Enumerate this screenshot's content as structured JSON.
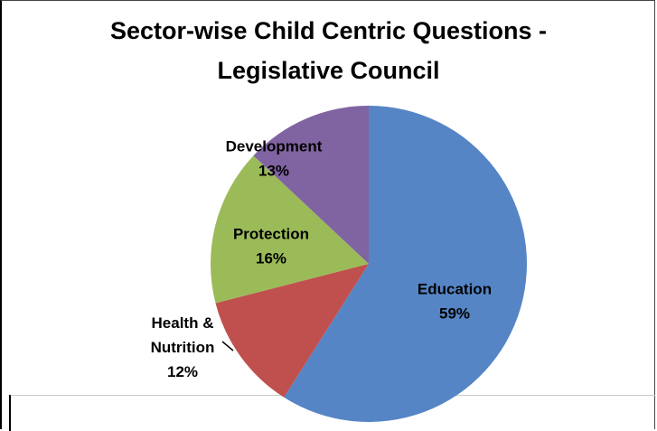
{
  "chart_data": {
    "type": "pie",
    "title_lines": [
      "Sector-wise Child Centric Questions -",
      "Legislative Council"
    ],
    "slices": [
      {
        "label": "Education",
        "value": 59,
        "value_label": "59%",
        "color": "#5585c5"
      },
      {
        "label": "Health &\nNutrition",
        "value": 12,
        "value_label": "12%",
        "color": "#c0504d"
      },
      {
        "label": "Protection",
        "value": 16,
        "value_label": "16%",
        "color": "#9bbb59"
      },
      {
        "label": "Development",
        "value": 13,
        "value_label": "13%",
        "color": "#8064a2"
      }
    ],
    "start_angle_deg": 0,
    "direction": "clockwise"
  }
}
